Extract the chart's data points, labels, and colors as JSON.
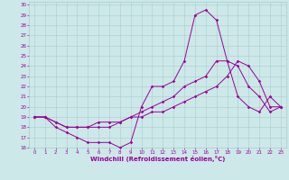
{
  "xlabel": "Windchill (Refroidissement éolien,°C)",
  "bg_color": "#cce8e8",
  "grid_color": "#aacccc",
  "line_color": "#990099",
  "xlim": [
    -0.5,
    23.5
  ],
  "ylim": [
    16,
    30.3
  ],
  "xticks": [
    0,
    1,
    2,
    3,
    4,
    5,
    6,
    7,
    8,
    9,
    10,
    11,
    12,
    13,
    14,
    15,
    16,
    17,
    18,
    19,
    20,
    21,
    22,
    23
  ],
  "yticks": [
    16,
    17,
    18,
    19,
    20,
    21,
    22,
    23,
    24,
    25,
    26,
    27,
    28,
    29,
    30
  ],
  "line1_x": [
    0,
    1,
    2,
    3,
    4,
    5,
    6,
    7,
    8,
    9,
    10,
    11,
    12,
    13,
    14,
    15,
    16,
    17,
    18,
    19,
    20,
    21,
    22,
    23
  ],
  "line1_y": [
    19.0,
    19.0,
    18.0,
    17.5,
    17.0,
    16.5,
    16.5,
    16.5,
    16.0,
    16.5,
    20.0,
    22.0,
    22.0,
    22.5,
    24.5,
    29.0,
    29.5,
    28.5,
    24.5,
    21.0,
    20.0,
    19.5,
    21.0,
    20.0
  ],
  "line2_x": [
    0,
    1,
    2,
    3,
    4,
    5,
    6,
    7,
    8,
    9,
    10,
    11,
    12,
    13,
    14,
    15,
    16,
    17,
    18,
    19,
    20,
    21,
    22,
    23
  ],
  "line2_y": [
    19.0,
    19.0,
    18.5,
    18.0,
    18.0,
    18.0,
    18.0,
    18.0,
    18.5,
    19.0,
    19.5,
    20.0,
    20.5,
    21.0,
    22.0,
    22.5,
    23.0,
    24.5,
    24.5,
    24.0,
    22.0,
    21.0,
    19.5,
    20.0
  ],
  "line3_x": [
    0,
    1,
    2,
    3,
    4,
    5,
    6,
    7,
    8,
    9,
    10,
    11,
    12,
    13,
    14,
    15,
    16,
    17,
    18,
    19,
    20,
    21,
    22,
    23
  ],
  "line3_y": [
    19.0,
    19.0,
    18.5,
    18.0,
    18.0,
    18.0,
    18.5,
    18.5,
    18.5,
    19.0,
    19.0,
    19.5,
    19.5,
    20.0,
    20.5,
    21.0,
    21.5,
    22.0,
    23.0,
    24.5,
    24.0,
    22.5,
    20.0,
    20.0
  ],
  "marker_size": 1.8,
  "linewidth": 0.7,
  "tick_fontsize": 4.0,
  "xlabel_fontsize": 5.0
}
